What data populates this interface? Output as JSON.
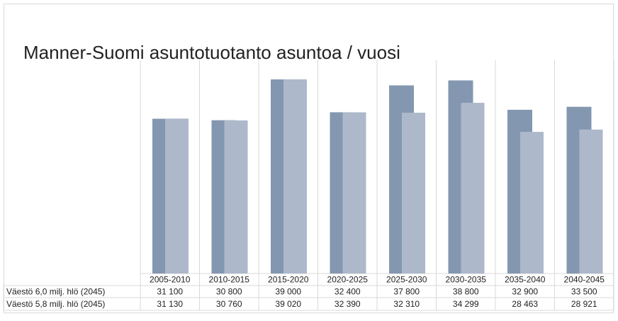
{
  "chart_data": {
    "type": "bar",
    "title": "Manner-Suomi asuntotuotanto asuntoa / vuosi",
    "categories": [
      "2005-2010",
      "2010-2015",
      "2015-2020",
      "2020-2025",
      "2025-2030",
      "2030-2035",
      "2035-2040",
      "2040-2045"
    ],
    "series": [
      {
        "name": "Väestö 6,0 milj. hlö (2045)",
        "color": "#8497b0",
        "values": [
          31100,
          30800,
          39000,
          32400,
          37800,
          38800,
          32900,
          33500
        ],
        "value_labels": [
          "31 100",
          "30 800",
          "39 000",
          "32 400",
          "37 800",
          "38 800",
          "32 900",
          "33 500"
        ]
      },
      {
        "name": "Väestö 5,8 milj. hlö (2045)",
        "color": "#adb9ca",
        "values": [
          31130,
          30760,
          39020,
          32390,
          32310,
          34299,
          28463,
          28921
        ],
        "value_labels": [
          "31 130",
          "30 760",
          "39 020",
          "32 390",
          "32 310",
          "34 299",
          "28 463",
          "28 921"
        ]
      }
    ],
    "ylim": [
      0,
      42000
    ]
  }
}
